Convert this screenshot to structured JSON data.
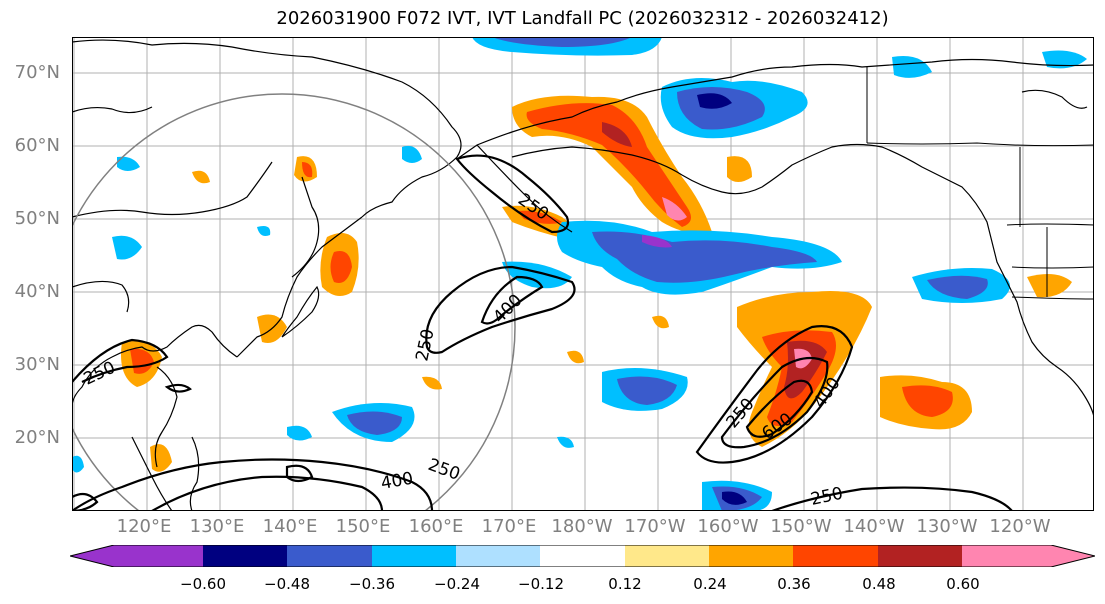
{
  "title": "2026031900 F072 IVT, IVT Landfall PC (2026032312 - 2026032412)",
  "latitude_labels": [
    "70°N",
    "60°N",
    "50°N",
    "40°N",
    "30°N",
    "20°N"
  ],
  "longitude_labels": [
    "120°E",
    "130°E",
    "140°E",
    "150°E",
    "160°E",
    "170°E",
    "180°W",
    "170°W",
    "160°W",
    "150°W",
    "140°W",
    "130°W",
    "120°W"
  ],
  "contour_labels": {
    "c1": "250",
    "c2": "250",
    "c3": "250",
    "c4": "250",
    "c5": "250",
    "c6": "400",
    "c7": "400",
    "c8": "400",
    "c9": "600"
  },
  "colorbar": {
    "colors": [
      "#9933cc",
      "#000080",
      "#3a5bcc",
      "#00bfff",
      "#aee0ff",
      "#ffffff",
      "#ffe88a",
      "#ffa500",
      "#ff4500",
      "#b22222",
      "#ff85b0"
    ],
    "ticks": [
      "−0.60",
      "−0.48",
      "−0.36",
      "−0.24",
      "−0.12",
      "0.12",
      "0.24",
      "0.36",
      "0.48",
      "0.60"
    ]
  }
}
